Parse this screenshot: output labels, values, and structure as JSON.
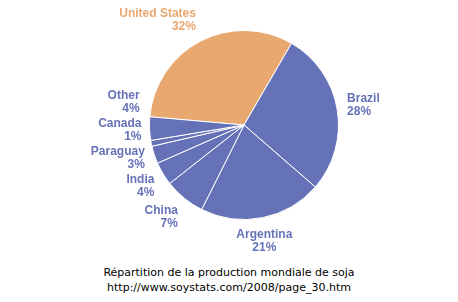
{
  "chart_data": {
    "type": "pie",
    "title": "Répartition de la production mondiale de soja",
    "subtitle": "http://www.soystats.com/2008/page_30.htm",
    "categories": [
      "United States",
      "Brazil",
      "Argentina",
      "China",
      "India",
      "Paraguay",
      "Canada",
      "Other"
    ],
    "values": [
      32,
      28,
      21,
      7,
      4,
      3,
      1,
      4
    ],
    "value_labels": [
      "32%",
      "28%",
      "21%",
      "7%",
      "4%",
      "3%",
      "1%",
      "4%"
    ],
    "colors": [
      "#e8a870",
      "#6672b8",
      "#6672b8",
      "#6672b8",
      "#6672b8",
      "#6672b8",
      "#6672b8",
      "#6672b8"
    ],
    "data_labels": true
  }
}
